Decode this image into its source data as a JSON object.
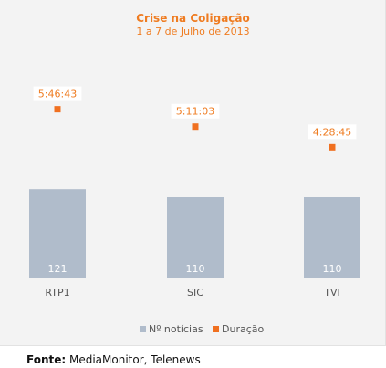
{
  "chart_data": {
    "type": "bar",
    "title": "Crise na Coligação",
    "subtitle": "1 a 7 de Julho de 2013",
    "categories": [
      "RTP1",
      "SIC",
      "TVI"
    ],
    "series": [
      {
        "name": "Nº notícias",
        "kind": "bar",
        "color": "#b0bccb",
        "values": [
          121,
          110,
          110
        ],
        "labels": [
          "121",
          "110",
          "110"
        ]
      },
      {
        "name": "Duração",
        "kind": "point",
        "color": "#f07020",
        "values": [
          20803,
          18663,
          16125
        ],
        "labels": [
          "5:46:43",
          "5:11:03",
          "4:28:45"
        ]
      }
    ],
    "legend": "bottom",
    "grid": false
  },
  "footer": {
    "label": "Fonte:",
    "text": " MediaMonitor, Telenews"
  },
  "colors": {
    "title": "#ef7c21",
    "bar": "#b0bccb",
    "point": "#f07020",
    "bar_label": "#ffffff",
    "duration_label": "#ef7c21"
  }
}
